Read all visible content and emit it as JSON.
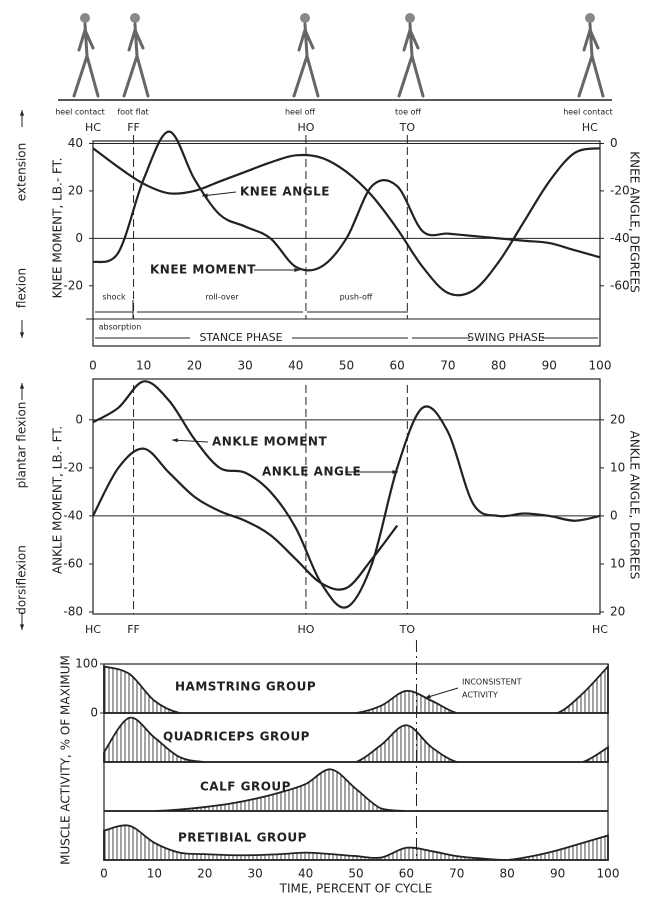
{
  "illustration": {
    "labels": [
      "heel contact",
      "foot flat",
      "heel off",
      "toe off",
      "heel contact"
    ]
  },
  "chart_data": [
    {
      "type": "line",
      "x": [
        0,
        5,
        10,
        15,
        20,
        25,
        30,
        35,
        40,
        45,
        50,
        55,
        60,
        65,
        70,
        75,
        80,
        85,
        90,
        95,
        100
      ],
      "xlim": [
        0,
        100
      ],
      "xticks": [
        0,
        10,
        20,
        30,
        40,
        50,
        60,
        70,
        80,
        90,
        100
      ],
      "ylim": [
        -34,
        52
      ],
      "yticks": [
        -20,
        0,
        20,
        40
      ],
      "y2lim": [
        -74,
        12
      ],
      "y2ticks": [
        -60,
        -40,
        -20,
        0
      ],
      "ylabel": "KNEE MOMENT, LB.- FT.",
      "y2label": "KNEE ANGLE, DEGREES",
      "direction_labels": [
        "extension",
        "flexion"
      ],
      "series": [
        {
          "name": "KNEE ANGLE",
          "axis": "y2",
          "color": "#222",
          "values": [
            -2,
            -10,
            -17,
            -21,
            -20,
            -16,
            -12,
            -8,
            -5,
            -6,
            -12,
            -22,
            -36,
            -52,
            -63,
            -62,
            -50,
            -33,
            -16,
            -4,
            -2
          ]
        },
        {
          "name": "KNEE MOMENT",
          "color": "#222",
          "values": [
            -10,
            -6,
            25,
            45,
            25,
            10,
            5,
            0,
            -12,
            -12,
            0,
            22,
            22,
            3,
            2,
            1,
            0,
            -1,
            -2,
            -5,
            -8
          ]
        }
      ],
      "events": {
        "labels": [
          "HC",
          "FF",
          "HO",
          "TO",
          "HC"
        ],
        "x": [
          0,
          8,
          42,
          62,
          98
        ],
        "lines": [
          false,
          true,
          true,
          true,
          false
        ]
      },
      "phases": {
        "labels": [
          "shock",
          "absorption",
          "roll-over",
          "push-off",
          "STANCE PHASE",
          "SWING PHASE"
        ]
      }
    },
    {
      "type": "line",
      "x": [
        0,
        5,
        10,
        15,
        20,
        25,
        30,
        35,
        40,
        45,
        50,
        55,
        60,
        65,
        70,
        75,
        80,
        85,
        90,
        95,
        100
      ],
      "xlim": [
        0,
        100
      ],
      "ylim": [
        -80,
        17
      ],
      "yticks": [
        -80,
        -60,
        -40,
        -20,
        0
      ],
      "y2lim": [
        -20,
        28.5
      ],
      "y2ticks": [
        {
          "value": -20,
          "label": "20"
        },
        {
          "value": -10,
          "label": "10"
        },
        0,
        10,
        20
      ],
      "ylabel": "ANKLE MOMENT, LB.- FT.",
      "y2label": "ANKLE ANGLE, DEGREES",
      "direction_labels": [
        "plantar flexion",
        "dorsiflexion"
      ],
      "series": [
        {
          "name": "ANKLE MOMENT",
          "color": "#222",
          "values": [
            -40,
            -20,
            -12,
            -22,
            -32,
            -38,
            -42,
            -48,
            -58,
            -68,
            -70,
            -58,
            -44,
            null,
            null,
            null,
            null,
            null,
            null,
            null,
            null
          ]
        },
        {
          "name": "ANKLE ANGLE",
          "axis": "y2",
          "color": "#222",
          "values": [
            19.5,
            22.5,
            28,
            24,
            16,
            10,
            9,
            5,
            -2.5,
            -14,
            -19,
            -10,
            10,
            22.5,
            17.5,
            2.5,
            0,
            0.5,
            0,
            -1,
            0
          ]
        }
      ],
      "events": {
        "labels": [
          "HC",
          "FF",
          "HO",
          "TO",
          "HC"
        ],
        "x": [
          0,
          8,
          42,
          62,
          100
        ],
        "lines": [
          false,
          true,
          true,
          true,
          false
        ]
      }
    },
    {
      "type": "area",
      "x": [
        0,
        5,
        10,
        15,
        20,
        25,
        30,
        35,
        40,
        45,
        50,
        55,
        60,
        65,
        70,
        75,
        80,
        85,
        90,
        95,
        100
      ],
      "xlim": [
        0,
        100
      ],
      "xticks": [
        0,
        10,
        20,
        30,
        40,
        50,
        60,
        70,
        80,
        90,
        100
      ],
      "ylim": [
        0,
        100
      ],
      "yticks": [
        0,
        100
      ],
      "xlabel": "TIME, PERCENT OF CYCLE",
      "ylabel": "MUSCLE ACTIVITY, % OF MAXIMUM",
      "annotation": [
        "INCONSISTENT",
        "ACTIVITY"
      ],
      "marker_x": 62,
      "series": [
        {
          "name": "HAMSTRING GROUP",
          "color": "#222",
          "values": [
            95,
            80,
            25,
            0,
            0,
            0,
            0,
            0,
            0,
            0,
            0,
            15,
            45,
            25,
            0,
            0,
            0,
            0,
            0,
            40,
            95
          ]
        },
        {
          "name": "QUADRICEPS GROUP",
          "color": "#222",
          "values": [
            20,
            90,
            50,
            10,
            0,
            0,
            0,
            0,
            0,
            0,
            0,
            35,
            75,
            30,
            0,
            0,
            0,
            0,
            0,
            0,
            30
          ]
        },
        {
          "name": "CALF GROUP",
          "color": "#222",
          "values": [
            0,
            0,
            0,
            3,
            8,
            15,
            25,
            38,
            55,
            85,
            45,
            5,
            0,
            0,
            0,
            0,
            0,
            0,
            0,
            0,
            0
          ]
        },
        {
          "name": "PRETIBIAL GROUP",
          "color": "#222",
          "values": [
            60,
            70,
            35,
            15,
            12,
            10,
            10,
            12,
            15,
            12,
            8,
            5,
            25,
            18,
            8,
            3,
            0,
            8,
            20,
            35,
            50
          ]
        }
      ]
    }
  ]
}
